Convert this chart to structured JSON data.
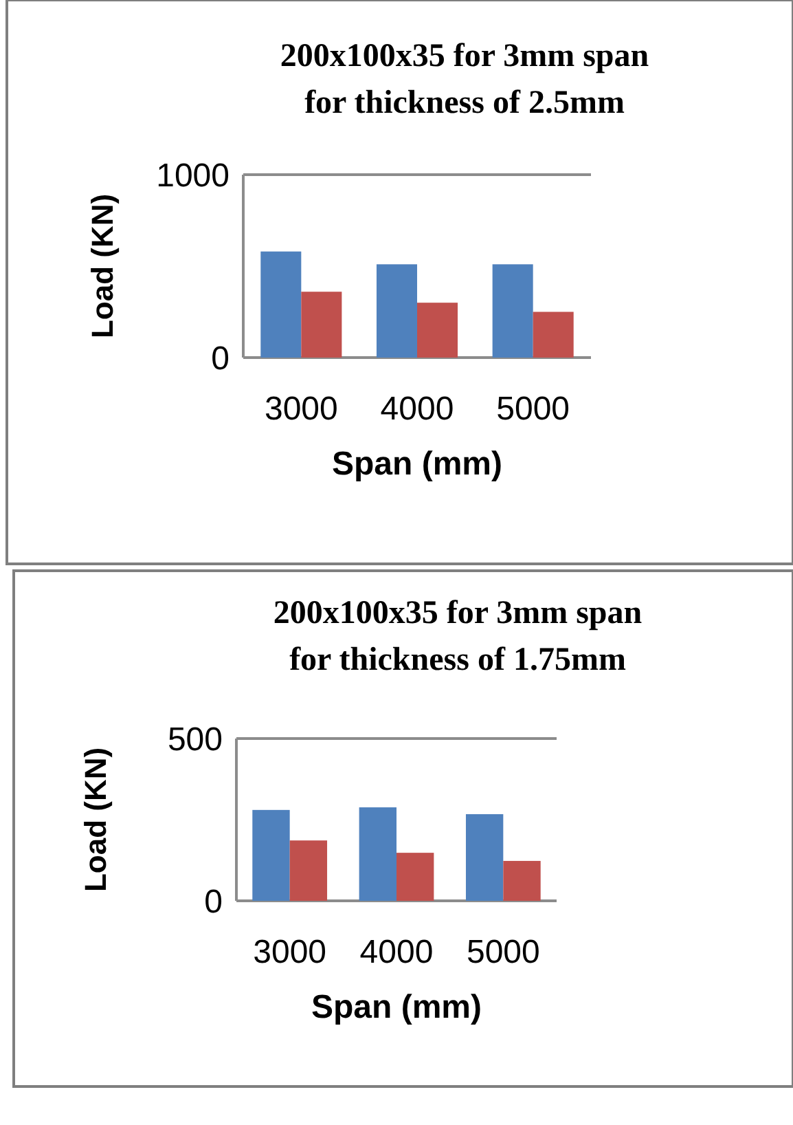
{
  "chart_data": [
    {
      "type": "bar",
      "title": "200x100x35 for 3mm span\nfor thickness of 2.5mm",
      "xlabel": "Span (mm)",
      "ylabel": "Load (KN)",
      "categories": [
        "3000",
        "4000",
        "5000"
      ],
      "series": [
        {
          "color": "#4f81bd",
          "values": [
            580,
            510,
            510
          ]
        },
        {
          "color": "#c0504d",
          "values": [
            360,
            300,
            250
          ]
        }
      ],
      "ylim": [
        0,
        1000
      ],
      "yticks": [
        0,
        1000
      ]
    },
    {
      "type": "bar",
      "title": "200x100x35 for 3mm span\nfor thickness of 1.75mm",
      "xlabel": "Span (mm)",
      "ylabel": "Load (KN)",
      "categories": [
        "3000",
        "4000",
        "5000"
      ],
      "series": [
        {
          "color": "#4f81bd",
          "values": [
            280,
            288,
            267
          ]
        },
        {
          "color": "#c0504d",
          "values": [
            186,
            148,
            123
          ]
        }
      ],
      "ylim": [
        0,
        500
      ],
      "yticks": [
        0,
        500
      ]
    }
  ]
}
